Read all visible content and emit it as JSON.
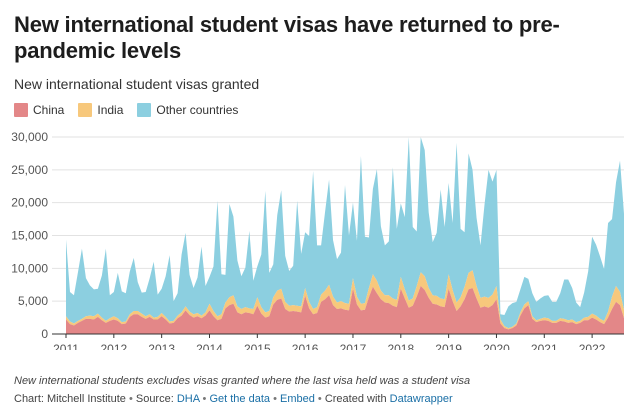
{
  "header": {
    "title": "New international student visas have returned to pre-pandemic levels",
    "subtitle": "New international student visas granted"
  },
  "colors": {
    "china": "#e38788",
    "india": "#f7c87c",
    "other": "#8ccfe0"
  },
  "footer": {
    "note": "New international students excludes visas granted where the last visa held was a student visa",
    "chart_label": "Chart: Mitchell Institute",
    "source_label": "Source:",
    "source_link": "DHA",
    "get_data": "Get the data",
    "embed": "Embed",
    "created_with": "Created with",
    "tool": "Datawrapper",
    "separator": "•"
  },
  "chart_data": {
    "type": "area",
    "stacked": true,
    "title": "New international student visas have returned to pre-pandemic levels",
    "subtitle": "New international student visas granted",
    "xlabel": "",
    "ylabel": "",
    "ylim": [
      0,
      30000
    ],
    "yticks": [
      0,
      5000,
      10000,
      15000,
      20000,
      25000,
      30000
    ],
    "ytick_labels": [
      "0",
      "5,000",
      "10,000",
      "15,000",
      "20,000",
      "25,000",
      "30,000"
    ],
    "xticks": [
      2011,
      2012,
      2013,
      2014,
      2015,
      2016,
      2017,
      2018,
      2019,
      2020,
      2021,
      2022
    ],
    "grid": "horizontal",
    "legend_position": "top-left",
    "x_start": "2011-01",
    "x_end": "2022-09",
    "x": [
      "2011-01",
      "2011-02",
      "2011-03",
      "2011-04",
      "2011-05",
      "2011-06",
      "2011-07",
      "2011-08",
      "2011-09",
      "2011-10",
      "2011-11",
      "2011-12",
      "2012-01",
      "2012-02",
      "2012-03",
      "2012-04",
      "2012-05",
      "2012-06",
      "2012-07",
      "2012-08",
      "2012-09",
      "2012-10",
      "2012-11",
      "2012-12",
      "2013-01",
      "2013-02",
      "2013-03",
      "2013-04",
      "2013-05",
      "2013-06",
      "2013-07",
      "2013-08",
      "2013-09",
      "2013-10",
      "2013-11",
      "2013-12",
      "2014-01",
      "2014-02",
      "2014-03",
      "2014-04",
      "2014-05",
      "2014-06",
      "2014-07",
      "2014-08",
      "2014-09",
      "2014-10",
      "2014-11",
      "2014-12",
      "2015-01",
      "2015-02",
      "2015-03",
      "2015-04",
      "2015-05",
      "2015-06",
      "2015-07",
      "2015-08",
      "2015-09",
      "2015-10",
      "2015-11",
      "2015-12",
      "2016-01",
      "2016-02",
      "2016-03",
      "2016-04",
      "2016-05",
      "2016-06",
      "2016-07",
      "2016-08",
      "2016-09",
      "2016-10",
      "2016-11",
      "2016-12",
      "2017-01",
      "2017-02",
      "2017-03",
      "2017-04",
      "2017-05",
      "2017-06",
      "2017-07",
      "2017-08",
      "2017-09",
      "2017-10",
      "2017-11",
      "2017-12",
      "2018-01",
      "2018-02",
      "2018-03",
      "2018-04",
      "2018-05",
      "2018-06",
      "2018-07",
      "2018-08",
      "2018-09",
      "2018-10",
      "2018-11",
      "2018-12",
      "2019-01",
      "2019-02",
      "2019-03",
      "2019-04",
      "2019-05",
      "2019-06",
      "2019-07",
      "2019-08",
      "2019-09",
      "2019-10",
      "2019-11",
      "2019-12",
      "2020-01",
      "2020-02",
      "2020-03",
      "2020-04",
      "2020-05",
      "2020-06",
      "2020-07",
      "2020-08",
      "2020-09",
      "2020-10",
      "2020-11",
      "2020-12",
      "2021-01",
      "2021-02",
      "2021-03",
      "2021-04",
      "2021-05",
      "2021-06",
      "2021-07",
      "2021-08",
      "2021-09",
      "2021-10",
      "2021-11",
      "2021-12",
      "2022-01",
      "2022-02",
      "2022-03",
      "2022-04",
      "2022-05",
      "2022-06",
      "2022-07",
      "2022-08",
      "2022-09"
    ],
    "series": [
      {
        "name": "China",
        "values": [
          2200,
          1500,
          1300,
          1700,
          2000,
          2300,
          2300,
          2200,
          2600,
          2100,
          1700,
          2000,
          2200,
          2000,
          1500,
          1600,
          2600,
          3000,
          3000,
          2600,
          2300,
          2600,
          2200,
          2200,
          2700,
          2200,
          1600,
          1700,
          2400,
          2800,
          3600,
          2900,
          2500,
          2700,
          2400,
          2800,
          3600,
          2700,
          2100,
          2300,
          3900,
          4400,
          4600,
          3300,
          3000,
          3300,
          3200,
          3000,
          4300,
          3100,
          2500,
          2700,
          4500,
          5200,
          5400,
          3800,
          3400,
          3500,
          3400,
          3300,
          5800,
          3900,
          3000,
          3200,
          4900,
          5300,
          5900,
          4400,
          3800,
          3900,
          3700,
          3600,
          6900,
          4500,
          3600,
          3700,
          5600,
          7200,
          6200,
          5300,
          4800,
          4700,
          4300,
          4100,
          6900,
          5400,
          4000,
          4300,
          5700,
          7300,
          6700,
          5500,
          4600,
          4500,
          4200,
          4100,
          6900,
          5000,
          3500,
          4200,
          5300,
          6800,
          7000,
          5400,
          4000,
          4200,
          4000,
          4400,
          5300,
          1600,
          900,
          700,
          900,
          1300,
          2800,
          3900,
          4400,
          2300,
          1800,
          2000,
          2100,
          2000,
          1700,
          1700,
          2000,
          1900,
          1700,
          1800,
          1500,
          1700,
          2100,
          2100,
          2500,
          2200,
          1800,
          1500,
          2500,
          3800,
          4900,
          4400,
          2400
        ]
      },
      {
        "name": "India",
        "values": [
          500,
          400,
          300,
          300,
          300,
          400,
          500,
          500,
          500,
          400,
          300,
          400,
          500,
          400,
          300,
          300,
          400,
          500,
          500,
          500,
          400,
          400,
          300,
          400,
          500,
          400,
          300,
          300,
          400,
          500,
          600,
          500,
          500,
          500,
          400,
          500,
          1000,
          800,
          600,
          700,
          900,
          1200,
          1300,
          900,
          800,
          800,
          700,
          800,
          1300,
          1000,
          800,
          800,
          1100,
          1400,
          1500,
          1100,
          900,
          900,
          900,
          900,
          1200,
          1000,
          800,
          900,
          1100,
          1300,
          1600,
          1300,
          1000,
          1100,
          1000,
          1000,
          1600,
          1200,
          1000,
          1000,
          1400,
          1900,
          1900,
          1300,
          1100,
          1200,
          1100,
          1100,
          1800,
          1400,
          1100,
          1100,
          1600,
          2100,
          2100,
          1500,
          1300,
          1300,
          1200,
          1200,
          2200,
          1700,
          1300,
          1400,
          1900,
          2500,
          2700,
          1900,
          1500,
          1500,
          1500,
          1600,
          2000,
          600,
          300,
          200,
          200,
          300,
          500,
          600,
          600,
          400,
          300,
          300,
          400,
          400,
          300,
          300,
          400,
          400,
          400,
          400,
          300,
          300,
          400,
          500,
          600,
          600,
          500,
          500,
          900,
          1900,
          2400,
          2000,
          1300
        ]
      },
      {
        "name": "Other countries",
        "values": [
          11700,
          4500,
          4300,
          7400,
          10700,
          5800,
          4600,
          4100,
          3800,
          6400,
          11000,
          3500,
          3700,
          6900,
          4700,
          4300,
          6500,
          8100,
          4400,
          3200,
          3700,
          5500,
          8500,
          3400,
          3700,
          6200,
          10100,
          3000,
          3400,
          8800,
          11200,
          5600,
          4000,
          5400,
          10500,
          4000,
          4100,
          6800,
          17600,
          6100,
          4200,
          14200,
          12000,
          7000,
          5000,
          6000,
          11800,
          4300,
          4700,
          8000,
          18500,
          5800,
          5000,
          11500,
          15000,
          7000,
          5300,
          6000,
          16000,
          8000,
          8500,
          10000,
          21000,
          9400,
          7500,
          12000,
          16000,
          8600,
          6600,
          7400,
          18000,
          10400,
          11500,
          8500,
          22500,
          10100,
          7700,
          13000,
          17000,
          9800,
          7600,
          8200,
          20000,
          10800,
          11200,
          11000,
          24900,
          10900,
          8300,
          20600,
          19200,
          11500,
          8100,
          9600,
          16600,
          11000,
          13900,
          10200,
          24300,
          10400,
          8300,
          18200,
          15300,
          10400,
          8000,
          14000,
          19500,
          17200,
          17700,
          800,
          1700,
          3300,
          3600,
          3300,
          3500,
          4200,
          3400,
          3500,
          2800,
          3100,
          3300,
          3500,
          2900,
          2900,
          3800,
          6000,
          6200,
          4800,
          3000,
          2100,
          3800,
          6900,
          11700,
          10800,
          9500,
          7900,
          13500,
          11800,
          15800,
          20000,
          14600
        ]
      }
    ]
  }
}
